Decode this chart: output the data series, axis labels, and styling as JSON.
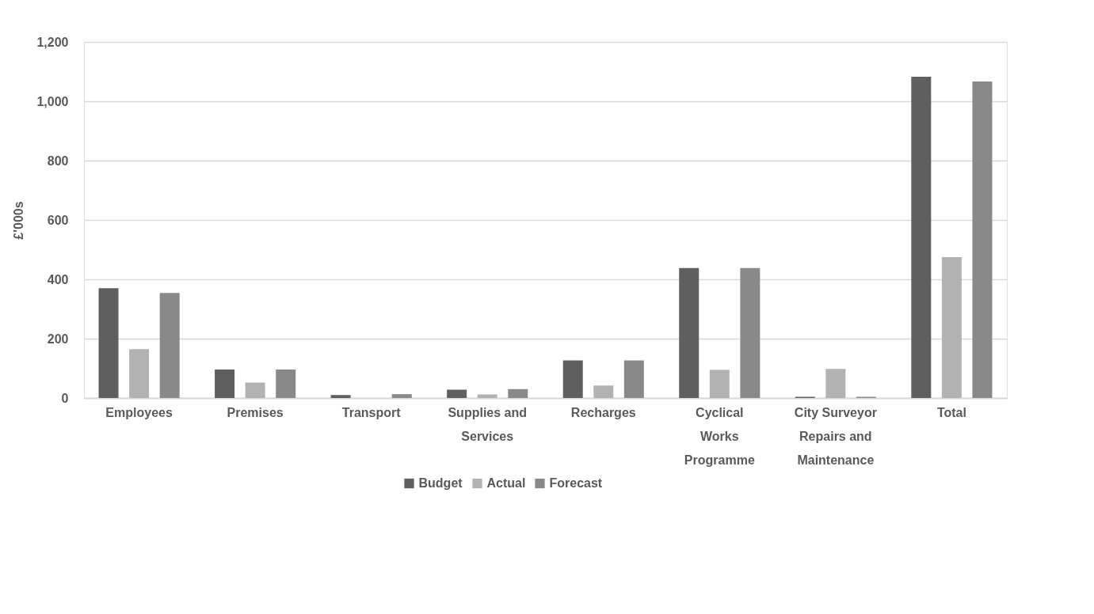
{
  "chart_data": {
    "type": "bar",
    "ylabel": "£'000s",
    "categories": [
      "Employees",
      "Premises",
      "Transport",
      "Supplies and Services",
      "Recharges",
      "Cyclical Works Programme",
      "City Surveyor Repairs and Maintenance",
      "Total"
    ],
    "series": [
      {
        "name": "Budget",
        "color": "#5f5f5f",
        "values": [
          370,
          96,
          10,
          28,
          127,
          438,
          4,
          1083
        ]
      },
      {
        "name": "Actual",
        "color": "#b2b2b2",
        "values": [
          165,
          52,
          0,
          12,
          42,
          95,
          98,
          475
        ]
      },
      {
        "name": "Forecast",
        "color": "#898989",
        "values": [
          354,
          96,
          13,
          30,
          127,
          438,
          4,
          1067
        ]
      }
    ],
    "ylim": [
      0,
      1200
    ],
    "yticks": [
      0,
      {
        "value": 200,
        "label": "200"
      },
      {
        "value": 400,
        "label": "400"
      },
      {
        "value": 600,
        "label": "600"
      },
      {
        "value": 800,
        "label": "800"
      },
      {
        "value": 1000,
        "label": "1,000"
      },
      {
        "value": 1200,
        "label": "1,200"
      }
    ],
    "grid": "y",
    "legend": "bottom"
  }
}
